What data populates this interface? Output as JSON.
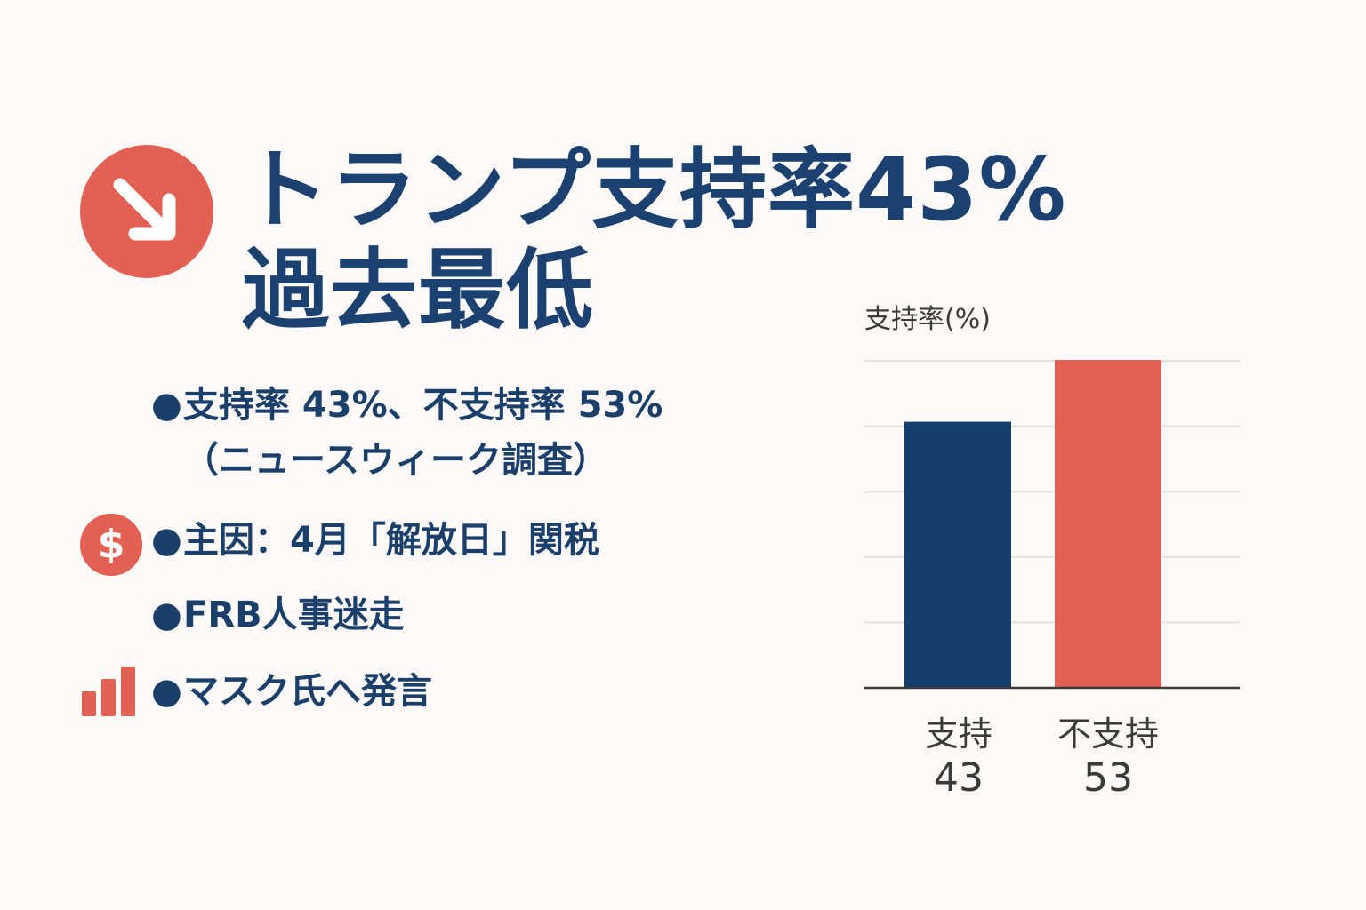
{
  "headline": {
    "line1": "トランプ支持率43%",
    "line2": "過去最低",
    "icon": "arrow-down-right-icon",
    "accent": "#e26152",
    "text_color": "#1b4170"
  },
  "bullets": [
    {
      "text": "支持率 43%、不支持率 53%",
      "subtext": "（ニュースウィーク調査）"
    },
    {
      "text": "主因：4月「解放日」関税",
      "icon": "dollar-icon",
      "icon_text": "$"
    },
    {
      "text": "FRB人事迷走"
    },
    {
      "text": "マスク氏へ発言",
      "icon": "bar-chart-icon"
    }
  ],
  "chart_data": {
    "type": "bar",
    "ylabel": "支持率(%)",
    "categories": [
      "支持",
      "不支持"
    ],
    "values": [
      43,
      53
    ],
    "value_labels": [
      "43",
      "53"
    ],
    "colors": [
      "#143f6c",
      "#e26152"
    ],
    "ylim": [
      0,
      53
    ],
    "grid": true,
    "legend": "none"
  }
}
